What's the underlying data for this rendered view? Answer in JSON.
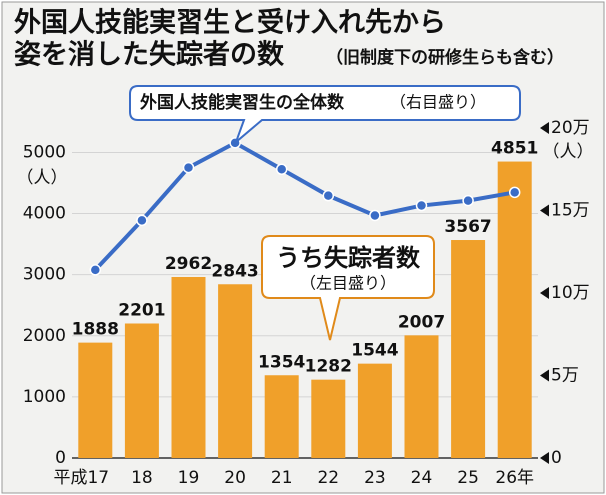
{
  "chart_data": {
    "type": "bar_line",
    "title": [
      "外国人技能実習生と受け入れ先から",
      "姿を消した失踪者の数"
    ],
    "title_note": "（旧制度下の研修生らも含む）",
    "categories": [
      "平成17",
      "18",
      "19",
      "20",
      "21",
      "22",
      "23",
      "24",
      "25",
      "26年"
    ],
    "series": [
      {
        "name": "うち失踪者数",
        "scale_note": "（左目盛り）",
        "type": "bar",
        "color": "#f0a02a",
        "values": [
          1888,
          2201,
          2962,
          2843,
          1354,
          1282,
          1544,
          2007,
          3567,
          4851
        ]
      },
      {
        "name": "外国人技能実習生の全体数",
        "scale_note": "（右目盛り）",
        "type": "line",
        "axis": "y2",
        "color": "#3a6cc6",
        "values": [
          114000,
          144000,
          176000,
          191000,
          175000,
          159000,
          147000,
          153000,
          156000,
          161000
        ]
      }
    ],
    "ylim": [
      0,
      5400
    ],
    "yticks": [
      0,
      1000,
      2000,
      3000,
      4000,
      5000
    ],
    "y_unit": "（人）",
    "y2lim": [
      0,
      200000
    ],
    "y2ticks": [
      0,
      {
        "value": 50000,
        "label": "5万"
      },
      {
        "value": 100000,
        "label": "10万"
      },
      {
        "value": 150000,
        "label": "15万"
      },
      {
        "value": 200000,
        "label": "20万"
      }
    ],
    "y2_unit": "（人）",
    "grid": true
  }
}
